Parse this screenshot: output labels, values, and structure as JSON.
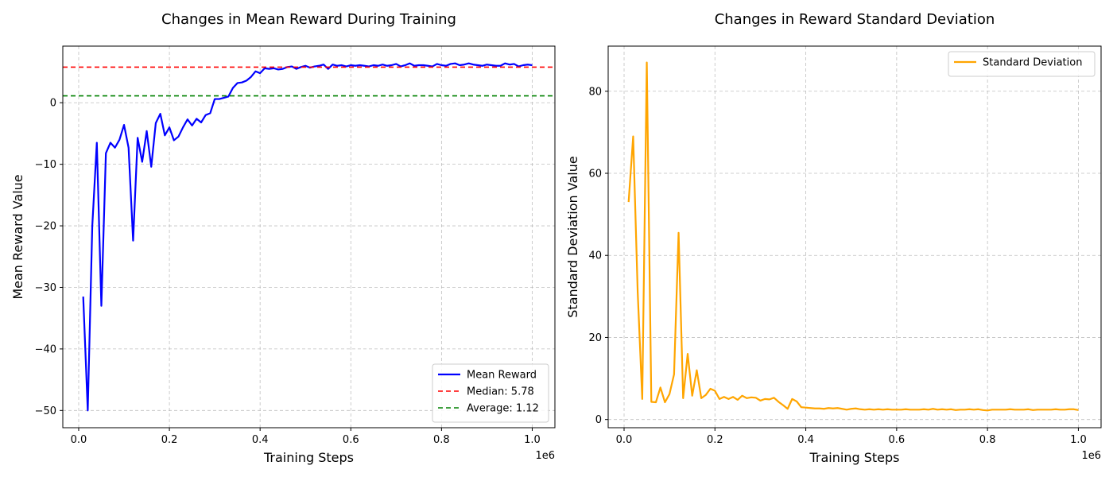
{
  "chart_data": [
    {
      "type": "line",
      "title": "Changes in Mean Reward During Training",
      "xlabel": "Training Steps",
      "ylabel": "Mean Reward Value",
      "x_offset_label": "1e6",
      "xlim": [
        -0.035,
        1.05
      ],
      "ylim": [
        -52.8,
        9.2
      ],
      "xticks": [
        0.0,
        0.2,
        0.4,
        0.6,
        0.8,
        1.0
      ],
      "xtick_labels": [
        "0.0",
        "0.2",
        "0.4",
        "0.6",
        "0.8",
        "1.0"
      ],
      "yticks": [
        -50,
        -40,
        -30,
        -20,
        -10,
        0
      ],
      "ytick_labels": [
        "−50",
        "−40",
        "−30",
        "−20",
        "−10",
        "0"
      ],
      "grid": true,
      "legend_position": "bottom-right",
      "series": [
        {
          "name": "Mean Reward",
          "color": "#0000ff",
          "style": "solid",
          "x": [
            0.01,
            0.02,
            0.03,
            0.04,
            0.05,
            0.06,
            0.07,
            0.08,
            0.09,
            0.1,
            0.11,
            0.12,
            0.13,
            0.14,
            0.15,
            0.16,
            0.17,
            0.18,
            0.19,
            0.2,
            0.21,
            0.22,
            0.23,
            0.24,
            0.25,
            0.26,
            0.27,
            0.28,
            0.29,
            0.3,
            0.31,
            0.32,
            0.33,
            0.34,
            0.35,
            0.36,
            0.37,
            0.38,
            0.39,
            0.4,
            0.41,
            0.42,
            0.43,
            0.44,
            0.45,
            0.46,
            0.47,
            0.48,
            0.49,
            0.5,
            0.51,
            0.52,
            0.53,
            0.54,
            0.55,
            0.56,
            0.57,
            0.58,
            0.59,
            0.6,
            0.61,
            0.62,
            0.63,
            0.64,
            0.65,
            0.66,
            0.67,
            0.68,
            0.69,
            0.7,
            0.71,
            0.72,
            0.73,
            0.74,
            0.75,
            0.76,
            0.77,
            0.78,
            0.79,
            0.8,
            0.81,
            0.82,
            0.83,
            0.84,
            0.85,
            0.86,
            0.87,
            0.88,
            0.89,
            0.9,
            0.91,
            0.92,
            0.93,
            0.94,
            0.95,
            0.96,
            0.97,
            0.98,
            0.99,
            1.0
          ],
          "y": [
            -31.5,
            -50.0,
            -20.0,
            -6.5,
            -33.0,
            -8.2,
            -6.5,
            -7.3,
            -6.0,
            -3.6,
            -7.3,
            -22.4,
            -5.7,
            -9.6,
            -4.6,
            -10.4,
            -3.3,
            -1.8,
            -5.3,
            -4.0,
            -6.1,
            -5.5,
            -4.0,
            -2.7,
            -3.7,
            -2.6,
            -3.2,
            -2.0,
            -1.7,
            0.6,
            0.6,
            0.8,
            1.0,
            2.4,
            3.2,
            3.3,
            3.6,
            4.2,
            5.1,
            4.8,
            5.6,
            5.5,
            5.6,
            5.4,
            5.5,
            5.8,
            5.9,
            5.5,
            5.8,
            6.0,
            5.7,
            5.9,
            6.0,
            6.2,
            5.5,
            6.2,
            6.0,
            6.1,
            5.9,
            6.1,
            6.0,
            6.1,
            6.0,
            5.9,
            6.1,
            6.0,
            6.2,
            6.0,
            6.1,
            6.3,
            5.9,
            6.1,
            6.4,
            6.0,
            6.1,
            6.1,
            6.0,
            5.9,
            6.3,
            6.1,
            6.0,
            6.3,
            6.4,
            6.1,
            6.2,
            6.4,
            6.2,
            6.1,
            6.0,
            6.2,
            6.1,
            6.0,
            6.0,
            6.4,
            6.2,
            6.3,
            5.9,
            6.1,
            6.2,
            6.1
          ]
        },
        {
          "name": "Median: 5.78",
          "color": "#ff0000",
          "style": "dashed",
          "hline": 5.78
        },
        {
          "name": "Average: 1.12",
          "color": "#008000",
          "style": "dashed",
          "hline": 1.12
        }
      ]
    },
    {
      "type": "line",
      "title": "Changes in Reward Standard Deviation",
      "xlabel": "Training Steps",
      "ylabel": "Standard Deviation Value",
      "x_offset_label": "1e6",
      "xlim": [
        -0.035,
        1.05
      ],
      "ylim": [
        -2.0,
        91.0
      ],
      "xticks": [
        0.0,
        0.2,
        0.4,
        0.6,
        0.8,
        1.0
      ],
      "xtick_labels": [
        "0.0",
        "0.2",
        "0.4",
        "0.6",
        "0.8",
        "1.0"
      ],
      "yticks": [
        0,
        20,
        40,
        60,
        80
      ],
      "ytick_labels": [
        "0",
        "20",
        "40",
        "60",
        "80"
      ],
      "grid": true,
      "legend_position": "top-right",
      "series": [
        {
          "name": "Standard Deviation",
          "color": "#ffa500",
          "style": "solid",
          "x": [
            0.01,
            0.02,
            0.03,
            0.04,
            0.05,
            0.06,
            0.07,
            0.08,
            0.09,
            0.1,
            0.11,
            0.12,
            0.13,
            0.14,
            0.15,
            0.16,
            0.17,
            0.18,
            0.19,
            0.2,
            0.21,
            0.22,
            0.23,
            0.24,
            0.25,
            0.26,
            0.27,
            0.28,
            0.29,
            0.3,
            0.31,
            0.32,
            0.33,
            0.34,
            0.35,
            0.36,
            0.37,
            0.38,
            0.39,
            0.4,
            0.41,
            0.42,
            0.43,
            0.44,
            0.45,
            0.46,
            0.47,
            0.48,
            0.49,
            0.5,
            0.51,
            0.52,
            0.53,
            0.54,
            0.55,
            0.56,
            0.57,
            0.58,
            0.59,
            0.6,
            0.61,
            0.62,
            0.63,
            0.64,
            0.65,
            0.66,
            0.67,
            0.68,
            0.69,
            0.7,
            0.71,
            0.72,
            0.73,
            0.74,
            0.75,
            0.76,
            0.77,
            0.78,
            0.79,
            0.8,
            0.81,
            0.82,
            0.83,
            0.84,
            0.85,
            0.86,
            0.87,
            0.88,
            0.89,
            0.9,
            0.91,
            0.92,
            0.93,
            0.94,
            0.95,
            0.96,
            0.97,
            0.98,
            0.99,
            1.0
          ],
          "y": [
            53,
            69,
            31,
            5,
            87,
            4.3,
            4.2,
            7.8,
            4.2,
            6.2,
            11,
            45.5,
            5.2,
            16,
            5.8,
            12,
            5.2,
            6.0,
            7.5,
            7.0,
            5.0,
            5.5,
            5.0,
            5.5,
            4.8,
            5.8,
            5.2,
            5.4,
            5.3,
            4.6,
            5.0,
            4.9,
            5.3,
            4.3,
            3.5,
            2.6,
            5.0,
            4.4,
            3.0,
            2.9,
            2.8,
            2.7,
            2.7,
            2.6,
            2.8,
            2.7,
            2.8,
            2.6,
            2.4,
            2.6,
            2.7,
            2.5,
            2.4,
            2.5,
            2.4,
            2.5,
            2.4,
            2.5,
            2.4,
            2.4,
            2.4,
            2.5,
            2.4,
            2.4,
            2.4,
            2.5,
            2.4,
            2.6,
            2.4,
            2.5,
            2.4,
            2.5,
            2.3,
            2.4,
            2.4,
            2.5,
            2.4,
            2.5,
            2.3,
            2.2,
            2.4,
            2.4,
            2.4,
            2.4,
            2.5,
            2.4,
            2.4,
            2.4,
            2.5,
            2.3,
            2.4,
            2.4,
            2.4,
            2.4,
            2.5,
            2.4,
            2.4,
            2.5,
            2.5,
            2.3
          ]
        }
      ]
    }
  ]
}
